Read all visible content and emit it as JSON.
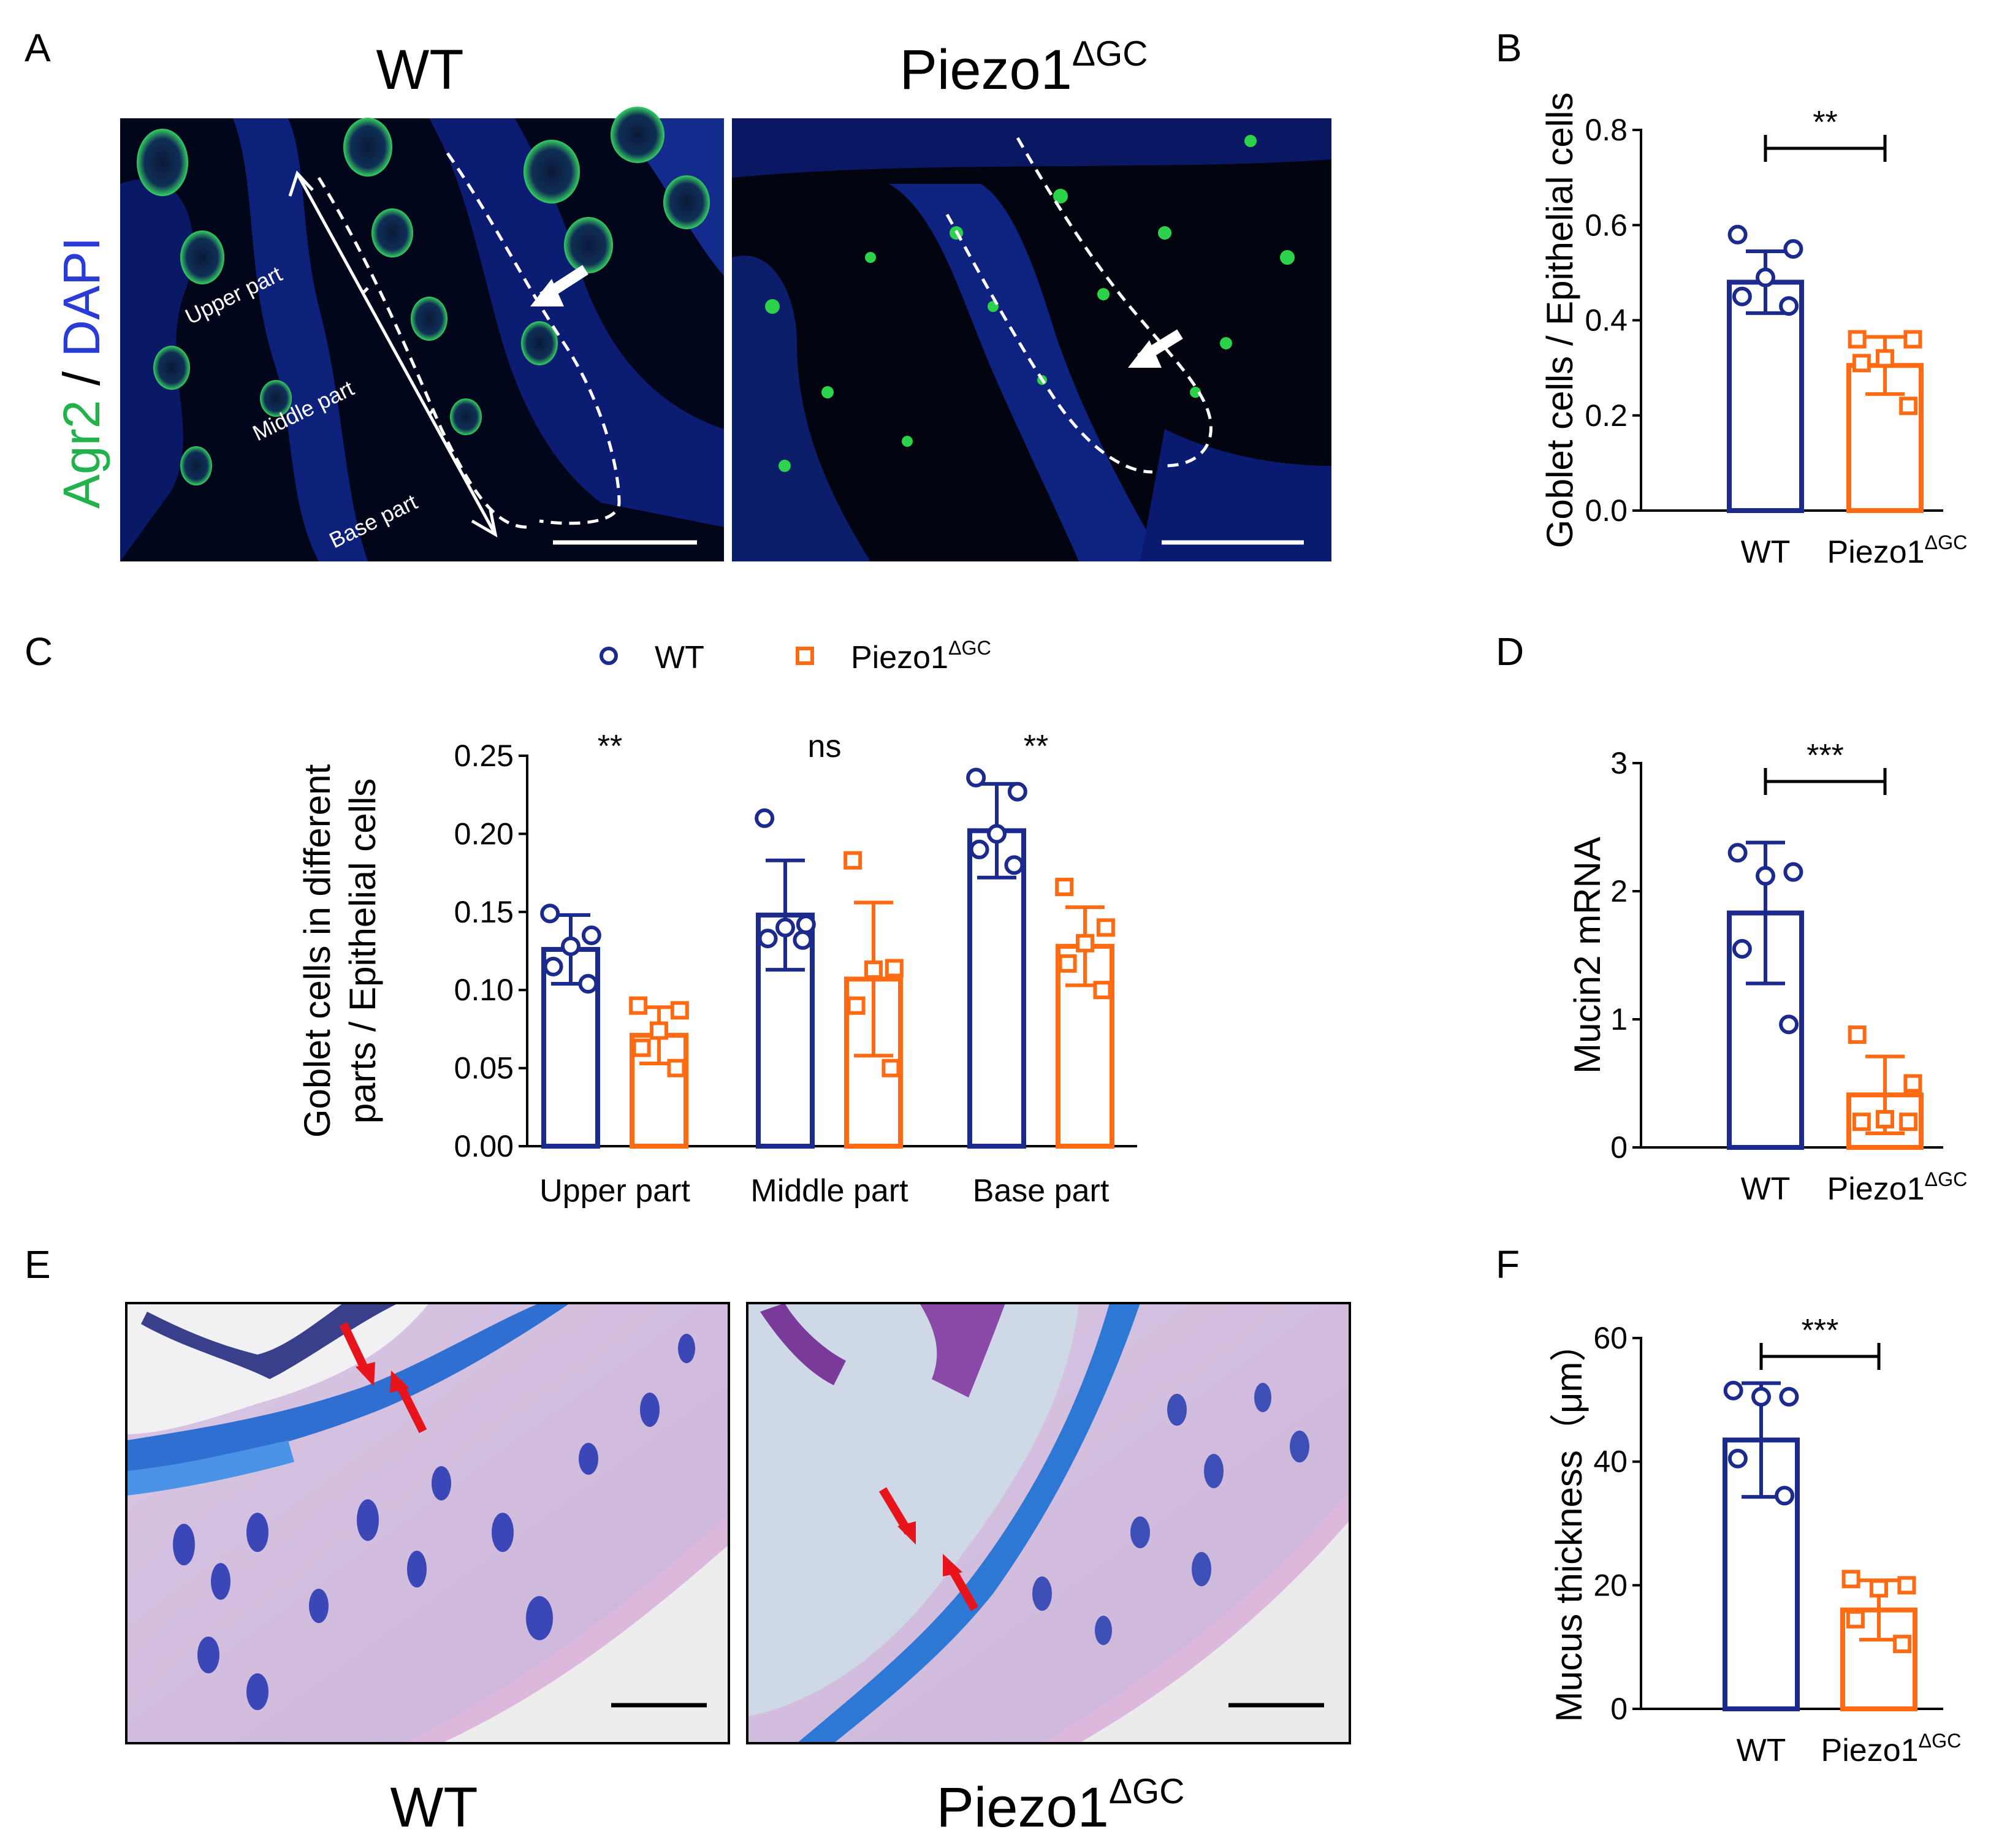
{
  "colors": {
    "wt": "#1b2a8c",
    "piezo": "#ff6a13",
    "agr2": "#22b24c",
    "dapi": "#2a3bd6",
    "arrow_red": "#e8141b"
  },
  "panel_letters": [
    "A",
    "B",
    "C",
    "D",
    "E",
    "F"
  ],
  "genotypes": {
    "wt": "WT",
    "piezo_base": "Piezo1",
    "piezo_sup": "ΔGC"
  },
  "panel_a": {
    "stain_green": "Agr2",
    "stain_sep": " / ",
    "stain_blue": "DAPI",
    "region_labels": [
      "Upper part",
      "Middle part",
      "Base part"
    ]
  },
  "chart_data": [
    {
      "id": "B",
      "type": "bar",
      "ylabel": "Goblet cells / Epithelial cells",
      "ylim": [
        0,
        0.8
      ],
      "yticks": [
        0.0,
        0.2,
        0.4,
        0.6,
        0.8
      ],
      "ytick_labels": [
        "0.0",
        "0.2",
        "0.4",
        "0.6",
        "0.8"
      ],
      "series": [
        {
          "name": "WT",
          "mean": 0.48,
          "sd": 0.065,
          "points": [
            0.58,
            0.55,
            0.49,
            0.45,
            0.43
          ]
        },
        {
          "name": "Piezo1ΔGC",
          "mean": 0.305,
          "sd": 0.06,
          "points": [
            0.36,
            0.36,
            0.32,
            0.31,
            0.22
          ]
        }
      ],
      "significance": "**"
    },
    {
      "id": "C",
      "type": "bar",
      "ylabel_lines": [
        "Goblet cells in different",
        "parts / Epithelial cells"
      ],
      "ylim": [
        0,
        0.25
      ],
      "yticks": [
        0.0,
        0.05,
        0.1,
        0.15,
        0.2,
        0.25
      ],
      "ytick_labels": [
        "0.00",
        "0.05",
        "0.10",
        "0.15",
        "0.20",
        "0.25"
      ],
      "categories": [
        "Upper part",
        "Middle part",
        "Base part"
      ],
      "legend": [
        "WT",
        "Piezo1ΔGC"
      ],
      "series": [
        {
          "name": "WT",
          "means": [
            0.126,
            0.148,
            0.202
          ],
          "sds": [
            0.022,
            0.035,
            0.03
          ],
          "points": [
            [
              0.149,
              0.135,
              0.128,
              0.115,
              0.104
            ],
            [
              0.21,
              0.142,
              0.14,
              0.133,
              0.132
            ],
            [
              0.236,
              0.227,
              0.2,
              0.19,
              0.18
            ]
          ]
        },
        {
          "name": "Piezo1ΔGC",
          "means": [
            0.071,
            0.107,
            0.128
          ],
          "sds": [
            0.018,
            0.049,
            0.025
          ],
          "points": [
            [
              0.09,
              0.087,
              0.074,
              0.063,
              0.05
            ],
            [
              0.183,
              0.114,
              0.113,
              0.09,
              0.05
            ],
            [
              0.166,
              0.14,
              0.13,
              0.117,
              0.1
            ]
          ]
        }
      ],
      "significance": [
        "**",
        "ns",
        "**"
      ]
    },
    {
      "id": "D",
      "type": "bar",
      "ylabel": "Mucin2 mRNA",
      "ylim": [
        0,
        3
      ],
      "yticks": [
        0,
        1,
        2,
        3
      ],
      "ytick_labels": [
        "0",
        "1",
        "2",
        "3"
      ],
      "series": [
        {
          "name": "WT",
          "mean": 1.83,
          "sd": 0.55,
          "points": [
            2.3,
            2.15,
            2.12,
            1.55,
            0.96
          ]
        },
        {
          "name": "Piezo1ΔGC",
          "mean": 0.41,
          "sd": 0.3,
          "points": [
            0.88,
            0.5,
            0.22,
            0.2,
            0.2
          ]
        }
      ],
      "significance": "***"
    },
    {
      "id": "F",
      "type": "bar",
      "ylabel": "Mucus thickness（μm）",
      "ylim": [
        0,
        60
      ],
      "yticks": [
        0,
        20,
        40,
        60
      ],
      "ytick_labels": [
        "0",
        "20",
        "40",
        "60"
      ],
      "series": [
        {
          "name": "WT",
          "mean": 43.5,
          "sd": 9.2,
          "points": [
            51.5,
            50.5,
            50.5,
            40.5,
            34.5
          ]
        },
        {
          "name": "Piezo1ΔGC",
          "mean": 16,
          "sd": 4.8,
          "points": [
            21,
            20,
            19.5,
            14.5,
            10.5
          ]
        }
      ],
      "significance": "***"
    }
  ]
}
